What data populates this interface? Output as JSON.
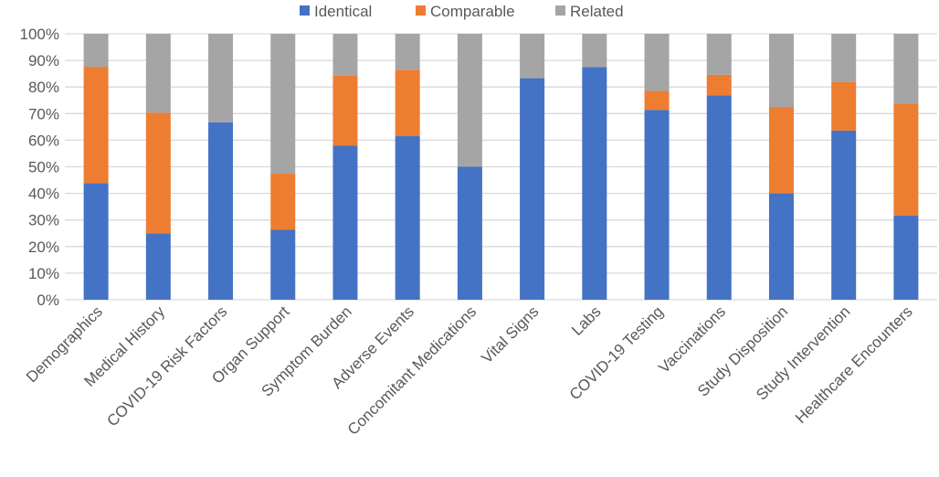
{
  "chart_data": {
    "type": "bar",
    "stacked": "percent",
    "title": "",
    "xlabel": "",
    "ylabel": "",
    "ylim": [
      0,
      100
    ],
    "yticks": [
      "0%",
      "10%",
      "20%",
      "30%",
      "40%",
      "50%",
      "60%",
      "70%",
      "80%",
      "90%",
      "100%"
    ],
    "grid": true,
    "legend_position": "top",
    "categories": [
      "Demographics",
      "Medical History",
      "COVID-19 Risk Factors",
      "Organ Support",
      "Symptom Burden",
      "Adverse Events",
      "Concomitant Medications",
      "Vital Signs",
      "Labs",
      "COVID-19 Testing",
      "Vaccinations",
      "Study Disposition",
      "Study Intervention",
      "Healthcare Encounters"
    ],
    "series": [
      {
        "name": "Identical",
        "color": "#4472C4",
        "values": [
          43.8,
          25.0,
          66.7,
          26.3,
          57.9,
          61.5,
          50.0,
          83.3,
          87.5,
          71.4,
          76.9,
          40.0,
          63.6,
          31.6
        ]
      },
      {
        "name": "Comparable",
        "color": "#ED7D31",
        "values": [
          43.8,
          45.3,
          0,
          21.1,
          26.3,
          25.0,
          0,
          0,
          0,
          7.1,
          7.7,
          32.5,
          18.2,
          42.1
        ]
      },
      {
        "name": "Related",
        "color": "#A5A5A5",
        "values": [
          12.4,
          29.7,
          33.3,
          52.6,
          15.8,
          13.5,
          50.0,
          16.7,
          12.5,
          21.5,
          15.4,
          27.5,
          18.2,
          26.3
        ]
      }
    ]
  }
}
